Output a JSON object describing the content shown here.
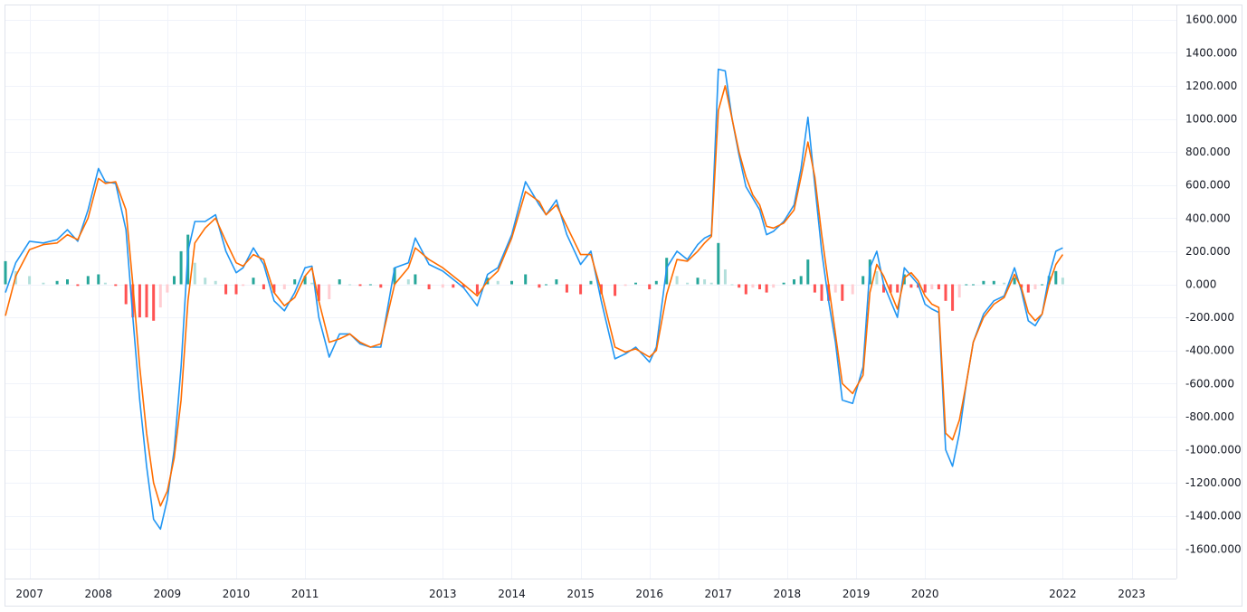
{
  "chart_data": {
    "type": "line",
    "title": "",
    "xlabel": "",
    "ylabel": "",
    "xlim": [
      2006.65,
      2023.65
    ],
    "ylim": [
      -1760,
      1620
    ],
    "grid": true,
    "y_ticks": [
      "1600.000",
      "1400.000",
      "1200.000",
      "1000.000",
      "800.000",
      "600.000",
      "400.000",
      "200.000",
      "0.000",
      "-200.000",
      "-400.000",
      "-600.000",
      "-800.000",
      "-1000.000",
      "-1200.000",
      "-1400.000",
      "-1600.000"
    ],
    "y_tick_values": [
      1600,
      1400,
      1200,
      1000,
      800,
      600,
      400,
      200,
      0,
      -200,
      -400,
      -600,
      -800,
      -1000,
      -1200,
      -1400,
      -1600
    ],
    "x_ticks": [
      "2007",
      "2008",
      "2009",
      "2010",
      "2011",
      "2013",
      "2014",
      "2015",
      "2016",
      "2017",
      "2018",
      "2019",
      "2020",
      "2022",
      "2023"
    ],
    "x_tick_values": [
      2007,
      2008,
      2009,
      2010,
      2011,
      2013,
      2014,
      2015,
      2016,
      2017,
      2018,
      2019,
      2020,
      2022,
      2023
    ],
    "colors": {
      "macd": "#2196f3",
      "signal": "#ff6d00",
      "hist_pos_strong": "#26a69a",
      "hist_pos_weak": "#b2dfdb",
      "hist_neg_strong": "#ff5252",
      "hist_neg_weak": "#ffcdd2",
      "grid": "#f0f3fa",
      "text": "#131722"
    },
    "series": [
      {
        "role": "macd",
        "x": [
          2006.65,
          2006.8,
          2007.0,
          2007.2,
          2007.4,
          2007.55,
          2007.7,
          2007.85,
          2008.0,
          2008.1,
          2008.25,
          2008.4,
          2008.5,
          2008.6,
          2008.7,
          2008.8,
          2008.9,
          2009.0,
          2009.1,
          2009.2,
          2009.3,
          2009.4,
          2009.55,
          2009.7,
          2009.85,
          2010.0,
          2010.1,
          2010.25,
          2010.4,
          2010.55,
          2010.7,
          2010.85,
          2011.0,
          2011.1,
          2011.2,
          2011.35,
          2011.5,
          2011.65,
          2011.8,
          2011.95,
          2012.1,
          2012.3,
          2012.5,
          2012.6,
          2012.8,
          2013.0,
          2013.15,
          2013.3,
          2013.5,
          2013.65,
          2013.8,
          2014.0,
          2014.2,
          2014.4,
          2014.5,
          2014.65,
          2014.8,
          2015.0,
          2015.15,
          2015.3,
          2015.5,
          2015.65,
          2015.8,
          2016.0,
          2016.1,
          2016.25,
          2016.4,
          2016.55,
          2016.7,
          2016.8,
          2016.9,
          2017.0,
          2017.1,
          2017.2,
          2017.3,
          2017.4,
          2017.5,
          2017.6,
          2017.7,
          2017.8,
          2017.95,
          2018.1,
          2018.2,
          2018.3,
          2018.4,
          2018.5,
          2018.6,
          2018.7,
          2018.8,
          2018.95,
          2019.1,
          2019.2,
          2019.3,
          2019.4,
          2019.5,
          2019.6,
          2019.7,
          2019.8,
          2019.9,
          2020.0,
          2020.1,
          2020.2,
          2020.3,
          2020.4,
          2020.5,
          2020.6,
          2020.7,
          2020.85,
          2021.0,
          2021.15,
          2021.3,
          2021.4,
          2021.5,
          2021.6,
          2021.7,
          2021.8,
          2021.9,
          2022.0
        ],
        "values": [
          -50,
          130,
          260,
          250,
          270,
          330,
          260,
          450,
          700,
          620,
          610,
          330,
          -200,
          -700,
          -1100,
          -1420,
          -1480,
          -1300,
          -1000,
          -500,
          200,
          380,
          380,
          420,
          200,
          70,
          100,
          220,
          120,
          -100,
          -160,
          -50,
          100,
          110,
          -200,
          -440,
          -300,
          -300,
          -360,
          -380,
          -380,
          100,
          130,
          280,
          120,
          80,
          30,
          -20,
          -130,
          60,
          100,
          300,
          620,
          480,
          420,
          510,
          300,
          120,
          200,
          -100,
          -450,
          -420,
          -380,
          -470,
          -380,
          100,
          200,
          150,
          240,
          280,
          300,
          1300,
          1290,
          1000,
          780,
          590,
          520,
          450,
          300,
          320,
          380,
          480,
          700,
          1010,
          600,
          200,
          -100,
          -350,
          -700,
          -720,
          -500,
          100,
          200,
          0,
          -100,
          -200,
          100,
          50,
          0,
          -120,
          -150,
          -170,
          -1000,
          -1100,
          -900,
          -600,
          -350,
          -180,
          -100,
          -70,
          100,
          -40,
          -220,
          -250,
          -180,
          50,
          200,
          220
        ]
      },
      {
        "role": "signal",
        "x": [
          2006.65,
          2006.8,
          2007.0,
          2007.2,
          2007.4,
          2007.55,
          2007.7,
          2007.85,
          2008.0,
          2008.1,
          2008.25,
          2008.4,
          2008.5,
          2008.6,
          2008.7,
          2008.8,
          2008.9,
          2009.0,
          2009.1,
          2009.2,
          2009.3,
          2009.4,
          2009.55,
          2009.7,
          2009.85,
          2010.0,
          2010.1,
          2010.25,
          2010.4,
          2010.55,
          2010.7,
          2010.85,
          2011.0,
          2011.1,
          2011.2,
          2011.35,
          2011.5,
          2011.65,
          2011.8,
          2011.95,
          2012.1,
          2012.3,
          2012.5,
          2012.6,
          2012.8,
          2013.0,
          2013.15,
          2013.3,
          2013.5,
          2013.65,
          2013.8,
          2014.0,
          2014.2,
          2014.4,
          2014.5,
          2014.65,
          2014.8,
          2015.0,
          2015.15,
          2015.3,
          2015.5,
          2015.65,
          2015.8,
          2016.0,
          2016.1,
          2016.25,
          2016.4,
          2016.55,
          2016.7,
          2016.8,
          2016.9,
          2017.0,
          2017.1,
          2017.2,
          2017.3,
          2017.4,
          2017.5,
          2017.6,
          2017.7,
          2017.8,
          2017.95,
          2018.1,
          2018.2,
          2018.3,
          2018.4,
          2018.5,
          2018.6,
          2018.7,
          2018.8,
          2018.95,
          2019.1,
          2019.2,
          2019.3,
          2019.4,
          2019.5,
          2019.6,
          2019.7,
          2019.8,
          2019.9,
          2020.0,
          2020.1,
          2020.2,
          2020.3,
          2020.4,
          2020.5,
          2020.6,
          2020.7,
          2020.85,
          2021.0,
          2021.15,
          2021.3,
          2021.4,
          2021.5,
          2021.6,
          2021.7,
          2021.8,
          2021.9,
          2022.0
        ],
        "values": [
          -190,
          50,
          210,
          240,
          250,
          300,
          270,
          400,
          640,
          610,
          620,
          450,
          0,
          -500,
          -900,
          -1200,
          -1340,
          -1250,
          -1050,
          -700,
          -100,
          250,
          340,
          400,
          260,
          130,
          110,
          180,
          150,
          -50,
          -130,
          -80,
          50,
          100,
          -100,
          -350,
          -330,
          -300,
          -350,
          -380,
          -360,
          0,
          100,
          220,
          150,
          100,
          50,
          0,
          -70,
          20,
          80,
          280,
          560,
          500,
          420,
          480,
          350,
          180,
          180,
          -40,
          -380,
          -410,
          -390,
          -440,
          -400,
          -60,
          150,
          140,
          200,
          250,
          290,
          1050,
          1200,
          1000,
          800,
          650,
          540,
          480,
          350,
          340,
          370,
          450,
          650,
          860,
          650,
          300,
          0,
          -300,
          -600,
          -660,
          -550,
          -50,
          120,
          50,
          -50,
          -150,
          40,
          70,
          20,
          -70,
          -120,
          -140,
          -900,
          -940,
          -820,
          -600,
          -350,
          -200,
          -120,
          -80,
          60,
          -20,
          -170,
          -220,
          -180,
          0,
          120,
          180
        ]
      }
    ],
    "histogram": {
      "x": [
        2006.65,
        2006.8,
        2007.0,
        2007.2,
        2007.4,
        2007.55,
        2007.7,
        2007.85,
        2008.0,
        2008.1,
        2008.25,
        2008.4,
        2008.5,
        2008.6,
        2008.7,
        2008.8,
        2008.9,
        2009.0,
        2009.1,
        2009.2,
        2009.3,
        2009.4,
        2009.55,
        2009.7,
        2009.85,
        2010.0,
        2010.1,
        2010.25,
        2010.4,
        2010.55,
        2010.7,
        2010.85,
        2011.0,
        2011.1,
        2011.2,
        2011.35,
        2011.5,
        2011.65,
        2011.8,
        2011.95,
        2012.1,
        2012.3,
        2012.5,
        2012.6,
        2012.8,
        2013.0,
        2013.15,
        2013.3,
        2013.5,
        2013.65,
        2013.8,
        2014.0,
        2014.2,
        2014.4,
        2014.5,
        2014.65,
        2014.8,
        2015.0,
        2015.15,
        2015.3,
        2015.5,
        2015.65,
        2015.8,
        2016.0,
        2016.1,
        2016.25,
        2016.4,
        2016.55,
        2016.7,
        2016.8,
        2016.9,
        2017.0,
        2017.1,
        2017.2,
        2017.3,
        2017.4,
        2017.5,
        2017.6,
        2017.7,
        2017.8,
        2017.95,
        2018.1,
        2018.2,
        2018.3,
        2018.4,
        2018.5,
        2018.6,
        2018.7,
        2018.8,
        2018.95,
        2019.1,
        2019.2,
        2019.3,
        2019.4,
        2019.5,
        2019.6,
        2019.7,
        2019.8,
        2019.9,
        2020.0,
        2020.1,
        2020.2,
        2020.3,
        2020.4,
        2020.5,
        2020.6,
        2020.7,
        2020.85,
        2021.0,
        2021.15,
        2021.3,
        2021.4,
        2021.5,
        2021.6,
        2021.7,
        2021.8,
        2021.9,
        2022.0
      ],
      "values": [
        140,
        80,
        50,
        10,
        20,
        30,
        -10,
        50,
        60,
        10,
        -10,
        -120,
        -200,
        -200,
        -200,
        -220,
        -140,
        -50,
        50,
        200,
        300,
        130,
        40,
        20,
        -60,
        -60,
        -10,
        40,
        -30,
        -50,
        -30,
        30,
        50,
        10,
        -100,
        -90,
        30,
        0,
        -10,
        0,
        -20,
        100,
        30,
        60,
        -30,
        -20,
        -20,
        -20,
        -60,
        40,
        20,
        20,
        60,
        -20,
        0,
        30,
        -50,
        -60,
        20,
        -60,
        -70,
        -10,
        10,
        -30,
        20,
        160,
        50,
        10,
        40,
        30,
        10,
        250,
        90,
        0,
        -20,
        -60,
        -20,
        -30,
        -50,
        -20,
        10,
        30,
        50,
        150,
        -50,
        -100,
        -100,
        -50,
        -100,
        -60,
        50,
        150,
        80,
        -50,
        -50,
        -50,
        60,
        -20,
        -20,
        -50,
        -30,
        -30,
        -100,
        -160,
        -80,
        0,
        0,
        20,
        20,
        10,
        40,
        -20,
        -50,
        -30,
        0,
        50,
        80,
        40
      ]
    }
  }
}
